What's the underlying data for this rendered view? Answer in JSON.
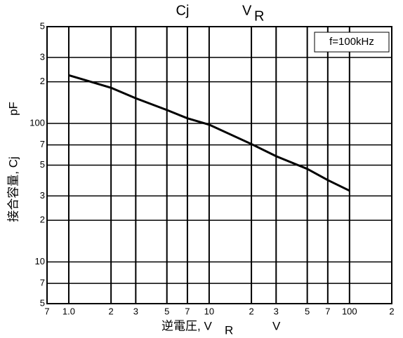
{
  "chart_data": {
    "type": "line",
    "title": {
      "left": "Cj",
      "right": "V",
      "right_sub": "R"
    },
    "x_label": {
      "text": "逆電圧, V",
      "sub": "R",
      "unit": "V"
    },
    "y_label": {
      "text": "接合容量, Cj",
      "unit": "pF"
    },
    "annotation": "f=100kHz",
    "x": [
      1,
      2,
      3,
      5,
      7,
      10,
      20,
      30,
      50,
      70,
      100
    ],
    "series": [
      {
        "name": "Cj",
        "color": "#000000",
        "values": [
          223,
          181,
          152,
          125,
          109,
          98,
          71,
          58,
          47,
          39,
          32.7
        ]
      }
    ],
    "log_x": true,
    "log_y": true,
    "grid": true,
    "xlim": [
      0.7,
      200
    ],
    "xticks": [
      {
        "value": 0.7,
        "label": "7"
      },
      {
        "value": 1,
        "label": "1.0"
      },
      2,
      3,
      5,
      7,
      10,
      {
        "value": 20,
        "label": "2"
      },
      {
        "value": 30,
        "label": "3"
      },
      {
        "value": 50,
        "label": "5"
      },
      {
        "value": 70,
        "label": "7"
      },
      100,
      {
        "value": 200,
        "label": "2"
      }
    ],
    "ylim": [
      5,
      500
    ],
    "yticks": [
      5,
      7,
      10,
      {
        "value": 20,
        "label": "2"
      },
      {
        "value": 30,
        "label": "3"
      },
      {
        "value": 50,
        "label": "5"
      },
      {
        "value": 70,
        "label": "7"
      },
      100,
      {
        "value": 200,
        "label": "2"
      },
      {
        "value": 300,
        "label": "3"
      },
      {
        "value": 500,
        "label": "5"
      }
    ]
  }
}
